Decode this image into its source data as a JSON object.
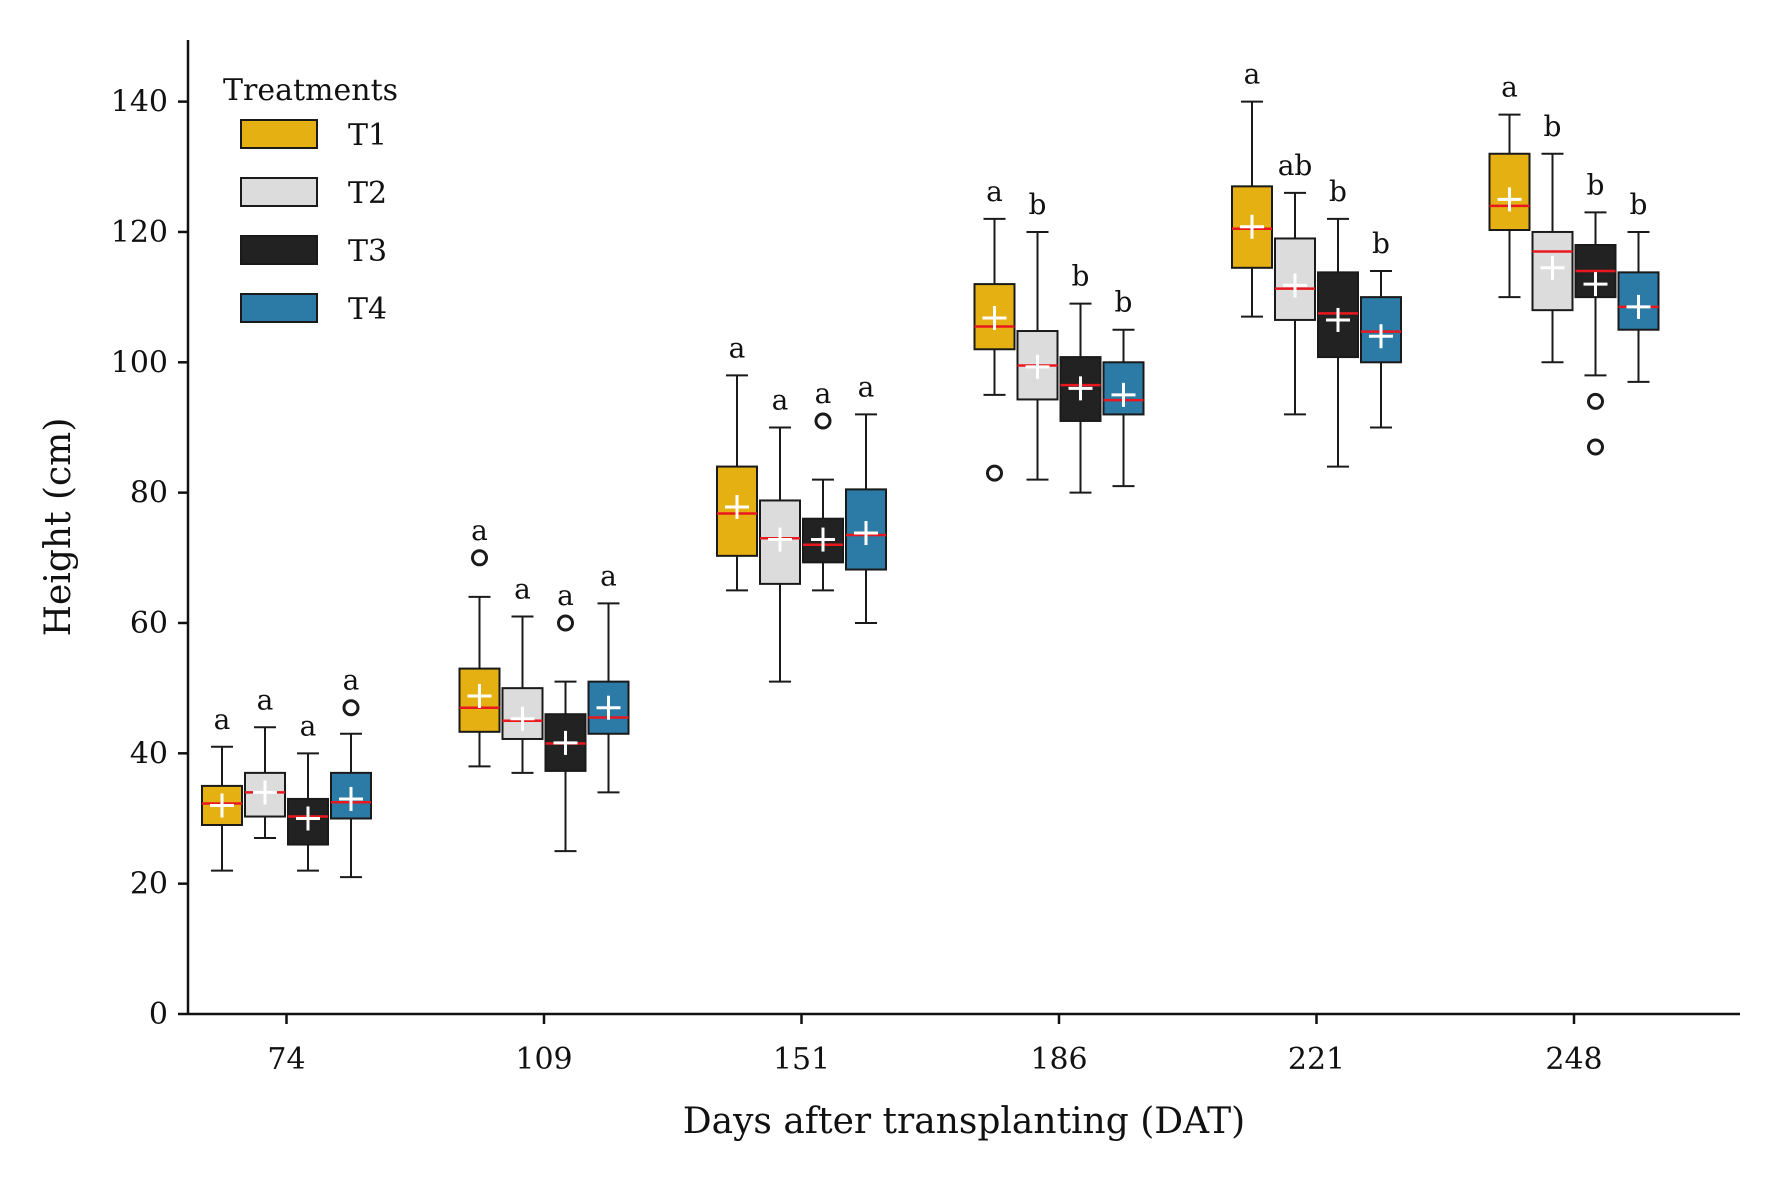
{
  "chart_data": {
    "type": "box",
    "xlabel": "Days after transplanting (DAT)",
    "ylabel": "Height (cm)",
    "ylim": [
      0,
      150
    ],
    "yticks": [
      0,
      20,
      40,
      60,
      80,
      100,
      120,
      140
    ],
    "grid": false,
    "categories": [
      "74",
      "109",
      "151",
      "186",
      "221",
      "248"
    ],
    "legend": {
      "title": "Treatments",
      "position": "top-left",
      "entries": [
        {
          "label": "T1",
          "color": "#E5B012"
        },
        {
          "label": "T2",
          "color": "#DCDCDC"
        },
        {
          "label": "T3",
          "color": "#222222"
        },
        {
          "label": "T4",
          "color": "#2B7BA6"
        }
      ]
    },
    "style": {
      "median_color": "#E8181E",
      "mean_marker_color": "#FFFFFF",
      "edge_color": "#1A1A1A"
    },
    "series": [
      {
        "name": "T1",
        "boxes": [
          {
            "whislo": 22,
            "q1": 29,
            "med": 32.3,
            "q3": 35,
            "whishi": 41,
            "mean": 32,
            "fliers": [],
            "letter": "a"
          },
          {
            "whislo": 38,
            "q1": 43.3,
            "med": 47,
            "q3": 53,
            "whishi": 64,
            "mean": 48.8,
            "fliers": [
              70
            ],
            "letter": "a"
          },
          {
            "whislo": 65,
            "q1": 70.3,
            "med": 76.8,
            "q3": 84,
            "whishi": 98,
            "mean": 77.8,
            "fliers": [],
            "letter": "a"
          },
          {
            "whislo": 95,
            "q1": 102,
            "med": 105.5,
            "q3": 112,
            "whishi": 122,
            "mean": 106.8,
            "fliers": [
              83
            ],
            "letter": "a"
          },
          {
            "whislo": 107,
            "q1": 114.5,
            "med": 120.5,
            "q3": 127,
            "whishi": 140,
            "mean": 120.8,
            "fliers": [],
            "letter": "a"
          },
          {
            "whislo": 110,
            "q1": 120.3,
            "med": 124,
            "q3": 132,
            "whishi": 138,
            "mean": 125,
            "fliers": [],
            "letter": "a"
          }
        ]
      },
      {
        "name": "T2",
        "boxes": [
          {
            "whislo": 27,
            "q1": 30.3,
            "med": 34,
            "q3": 37,
            "whishi": 44,
            "mean": 34,
            "fliers": [],
            "letter": "a"
          },
          {
            "whislo": 37,
            "q1": 42.2,
            "med": 45,
            "q3": 50,
            "whishi": 61,
            "mean": 45.3,
            "fliers": [],
            "letter": "a"
          },
          {
            "whislo": 51,
            "q1": 66,
            "med": 73,
            "q3": 78.8,
            "whishi": 90,
            "mean": 72.8,
            "fliers": [],
            "letter": "a"
          },
          {
            "whislo": 82,
            "q1": 94.3,
            "med": 99.5,
            "q3": 104.8,
            "whishi": 120,
            "mean": 99.3,
            "fliers": [],
            "letter": "b"
          },
          {
            "whislo": 92,
            "q1": 106.5,
            "med": 111.3,
            "q3": 119,
            "whishi": 126,
            "mean": 111.8,
            "fliers": [],
            "letter": "ab"
          },
          {
            "whislo": 100,
            "q1": 108,
            "med": 117,
            "q3": 120,
            "whishi": 132,
            "mean": 114.5,
            "fliers": [],
            "letter": "b"
          }
        ]
      },
      {
        "name": "T3",
        "boxes": [
          {
            "whislo": 22,
            "q1": 26,
            "med": 30.3,
            "q3": 33,
            "whishi": 40,
            "mean": 30,
            "fliers": [],
            "letter": "a"
          },
          {
            "whislo": 25,
            "q1": 37.3,
            "med": 41.5,
            "q3": 46,
            "whishi": 51,
            "mean": 41.6,
            "fliers": [
              60
            ],
            "letter": "a"
          },
          {
            "whislo": 65,
            "q1": 69.3,
            "med": 72,
            "q3": 76,
            "whishi": 82,
            "mean": 72.8,
            "fliers": [
              91
            ],
            "letter": "a"
          },
          {
            "whislo": 80,
            "q1": 91,
            "med": 96.5,
            "q3": 100.8,
            "whishi": 109,
            "mean": 96,
            "fliers": [],
            "letter": "b"
          },
          {
            "whislo": 84,
            "q1": 100.8,
            "med": 107.5,
            "q3": 113.8,
            "whishi": 122,
            "mean": 106.5,
            "fliers": [],
            "letter": "b"
          },
          {
            "whislo": 98,
            "q1": 110,
            "med": 114,
            "q3": 118,
            "whishi": 123,
            "mean": 112,
            "fliers": [
              94,
              87
            ],
            "letter": "b"
          }
        ]
      },
      {
        "name": "T4",
        "boxes": [
          {
            "whislo": 21,
            "q1": 30,
            "med": 32.5,
            "q3": 37,
            "whishi": 43,
            "mean": 33,
            "fliers": [
              47
            ],
            "letter": "a"
          },
          {
            "whislo": 34,
            "q1": 43,
            "med": 45.5,
            "q3": 51,
            "whishi": 63,
            "mean": 47,
            "fliers": [],
            "letter": "a"
          },
          {
            "whislo": 60,
            "q1": 68.2,
            "med": 73.5,
            "q3": 80.5,
            "whishi": 92,
            "mean": 73.8,
            "fliers": [],
            "letter": "a"
          },
          {
            "whislo": 81,
            "q1": 92,
            "med": 94.2,
            "q3": 100,
            "whishi": 105,
            "mean": 95,
            "fliers": [],
            "letter": "b"
          },
          {
            "whislo": 90,
            "q1": 100,
            "med": 104.7,
            "q3": 110,
            "whishi": 114,
            "mean": 104,
            "fliers": [],
            "letter": "b"
          },
          {
            "whislo": 97,
            "q1": 105,
            "med": 108.5,
            "q3": 113.8,
            "whishi": 120,
            "mean": 108.5,
            "fliers": [],
            "letter": "b"
          }
        ]
      }
    ]
  }
}
